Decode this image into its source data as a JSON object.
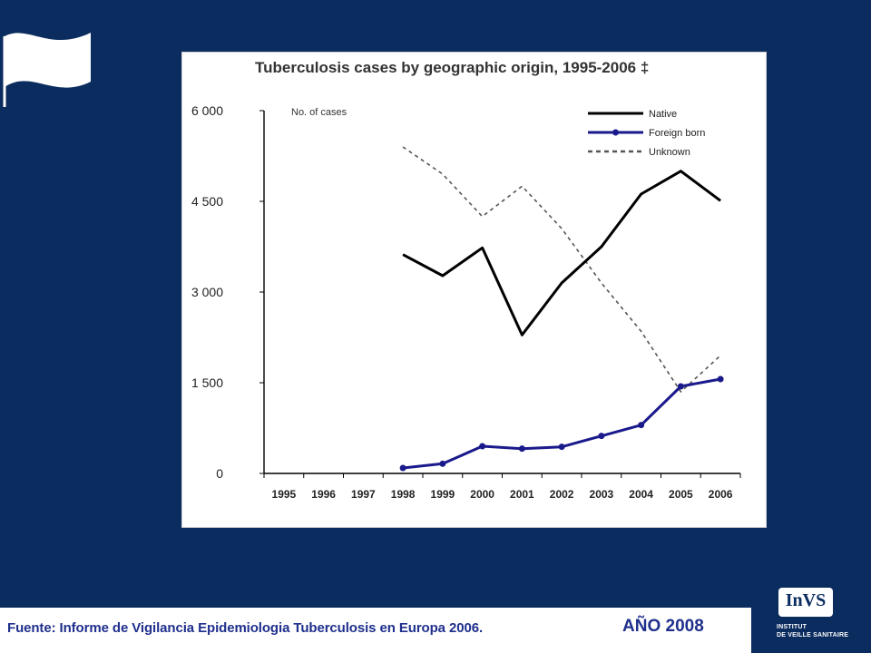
{
  "footer": {
    "source": "Fuente: Informe de Vigilancia Epidemiologia Tuberculosis en Europa 2006.",
    "year": "AÑO 2008"
  },
  "logo": {
    "name": "InVS",
    "line1": "INSTITUT",
    "line2": "DE VEILLE SANITAIRE"
  },
  "chart_data": {
    "type": "line",
    "title": "Tuberculosis cases by geographic origin, 1995-2006 ‡",
    "ylabel": "No. of cases",
    "xlabel": "",
    "categories": [
      "1995",
      "1996",
      "1997",
      "1998",
      "1999",
      "2000",
      "2001",
      "2002",
      "2003",
      "2004",
      "2005",
      "2006"
    ],
    "ylim": [
      0,
      6000
    ],
    "yticks": [
      0,
      1500,
      3000,
      4500,
      6000
    ],
    "ytick_labels": [
      "0",
      "1 500",
      "3 000",
      "4 500",
      "6 000"
    ],
    "legend_position": "top-right",
    "series": [
      {
        "name": "Native",
        "style": "solid",
        "color": "#000000",
        "markers": false,
        "values": [
          null,
          null,
          null,
          3620,
          3270,
          3730,
          2290,
          3150,
          3750,
          4620,
          5000,
          4510
        ]
      },
      {
        "name": "Foreign born",
        "style": "solid",
        "color": "#1a1a8c",
        "markers": true,
        "values": [
          null,
          null,
          null,
          90,
          160,
          450,
          410,
          440,
          620,
          800,
          1440,
          1560
        ]
      },
      {
        "name": "Unknown",
        "style": "dashed",
        "color": "#555555",
        "markers": false,
        "values": [
          null,
          null,
          null,
          5400,
          4950,
          4250,
          4750,
          4050,
          3150,
          2350,
          1350,
          1950
        ]
      }
    ]
  }
}
